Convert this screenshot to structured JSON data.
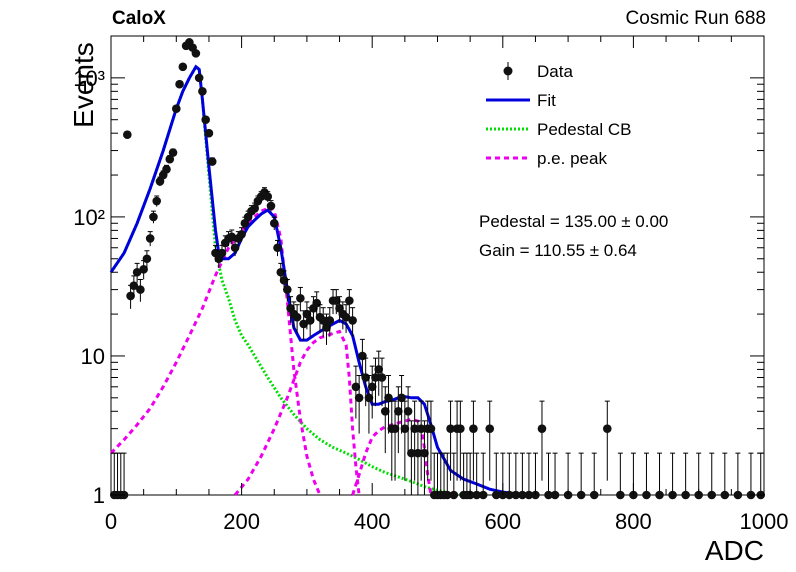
{
  "header": {
    "left": "CaloX",
    "right": "Cosmic Run 688"
  },
  "annotations": {
    "pedestal": "Pedestal = 135.00 ± 0.00",
    "gain": "Gain = 110.55 ± 0.64"
  },
  "chart_data": {
    "type": "scatter",
    "title": "",
    "xlabel": "ADC",
    "ylabel": "Events",
    "xlim": [
      0,
      1000
    ],
    "ylim": [
      1,
      2000
    ],
    "yscale": "log",
    "grid": false,
    "legend_position": "top-right",
    "x_ticks": [
      0,
      200,
      400,
      600,
      800,
      1000
    ],
    "y_ticks": [
      1,
      10,
      100,
      1000
    ],
    "y_tick_labels": [
      "1",
      "10",
      "10²",
      "10³"
    ],
    "legend": [
      {
        "label": "Data",
        "style": "marker",
        "color": "#000000"
      },
      {
        "label": "Fit",
        "style": "solid",
        "color": "#0000dd"
      },
      {
        "label": "Pedestal CB",
        "style": "dotted",
        "color": "#00dd00"
      },
      {
        "label": "p.e. peak",
        "style": "dashed",
        "color": "#ee00ee"
      }
    ],
    "data": {
      "name": "Data",
      "x": [
        5,
        10,
        15,
        20,
        25,
        30,
        35,
        40,
        45,
        50,
        55,
        60,
        65,
        70,
        75,
        80,
        85,
        90,
        95,
        100,
        105,
        110,
        115,
        120,
        125,
        130,
        135,
        140,
        145,
        150,
        155,
        160,
        165,
        170,
        175,
        180,
        185,
        190,
        195,
        200,
        205,
        210,
        215,
        220,
        225,
        230,
        235,
        240,
        245,
        250,
        255,
        260,
        265,
        270,
        275,
        280,
        285,
        290,
        295,
        300,
        305,
        310,
        315,
        320,
        325,
        330,
        335,
        340,
        345,
        350,
        355,
        360,
        365,
        370,
        375,
        380,
        385,
        390,
        395,
        400,
        405,
        410,
        415,
        420,
        425,
        430,
        435,
        440,
        445,
        450,
        455,
        460,
        465,
        470,
        475,
        480,
        485,
        490,
        495,
        500,
        505,
        510,
        515,
        520,
        525,
        530,
        535,
        540,
        545,
        550,
        555,
        560,
        570,
        580,
        590,
        600,
        610,
        620,
        630,
        640,
        650,
        660,
        670,
        680,
        700,
        720,
        740,
        760,
        780,
        800,
        820,
        840,
        860,
        880,
        900,
        920,
        940,
        960,
        980,
        995
      ],
      "y": [
        1,
        1,
        1,
        1,
        390,
        27,
        32,
        40,
        30,
        42,
        50,
        70,
        100,
        130,
        180,
        200,
        220,
        260,
        290,
        600,
        900,
        1200,
        1700,
        1800,
        1650,
        1500,
        1000,
        800,
        500,
        400,
        250,
        55,
        50,
        55,
        65,
        70,
        72,
        60,
        70,
        75,
        90,
        100,
        110,
        115,
        130,
        140,
        150,
        140,
        120,
        90,
        60,
        40,
        35,
        30,
        22,
        20,
        19,
        26,
        17,
        20,
        18,
        22,
        24,
        19,
        18,
        16,
        18,
        25,
        25,
        22,
        20,
        19,
        25,
        18,
        6,
        5,
        10,
        7,
        5,
        6,
        7,
        8,
        7,
        4,
        5,
        3,
        3,
        4,
        5,
        3,
        4,
        2,
        3,
        2,
        3,
        2,
        3,
        3,
        1,
        1,
        1,
        1,
        1,
        3,
        1,
        3,
        3,
        1,
        1,
        1,
        3,
        1,
        1,
        3,
        1,
        1,
        1,
        1,
        1,
        1,
        1,
        3,
        1,
        1,
        1,
        1,
        1,
        3,
        1,
        1,
        1,
        1,
        1,
        1,
        1,
        1,
        1,
        1,
        1,
        1
      ]
    },
    "series": [
      {
        "name": "Fit",
        "x": [
          0,
          20,
          40,
          60,
          80,
          100,
          110,
          120,
          130,
          135,
          140,
          150,
          160,
          165,
          170,
          180,
          190,
          200,
          210,
          220,
          230,
          240,
          250,
          260,
          270,
          280,
          290,
          300,
          310,
          320,
          330,
          340,
          350,
          360,
          370,
          380,
          390,
          400,
          410,
          420,
          430,
          440,
          450,
          460,
          470,
          480,
          490,
          500,
          520,
          540,
          560,
          580,
          600,
          620,
          640
        ],
        "y": [
          40,
          55,
          90,
          160,
          300,
          600,
          800,
          1000,
          1200,
          1150,
          700,
          230,
          80,
          55,
          50,
          50,
          55,
          70,
          85,
          95,
          105,
          112,
          100,
          60,
          30,
          16,
          13,
          13,
          14,
          15,
          16,
          17,
          18,
          17,
          14,
          9,
          6,
          4.5,
          4.5,
          4.7,
          4.8,
          5,
          5.1,
          5,
          5,
          4.5,
          3.2,
          2.2,
          1.5,
          1.3,
          1.2,
          1.1,
          1.05,
          1.02,
          1.0
        ]
      },
      {
        "name": "Pedestal CB",
        "x": [
          0,
          20,
          40,
          60,
          80,
          100,
          110,
          120,
          130,
          135,
          140,
          150,
          160,
          170,
          180,
          190,
          200,
          210,
          220,
          240,
          260,
          280,
          300,
          320,
          340,
          360,
          380,
          400,
          420,
          440,
          460,
          480,
          500,
          520,
          540
        ],
        "y": [
          40,
          55,
          90,
          160,
          300,
          600,
          800,
          1000,
          1200,
          1150,
          700,
          200,
          60,
          35,
          26,
          18,
          14,
          12,
          10,
          7,
          5,
          3.8,
          3,
          2.5,
          2.2,
          2,
          1.8,
          1.6,
          1.45,
          1.35,
          1.25,
          1.15,
          1.08,
          1.03,
          1.0
        ]
      },
      {
        "name": "p.e. peak",
        "components": [
          {
            "x": [
              0,
              20,
              40,
              60,
              80,
              100,
              120,
              140,
              160,
              180,
              200,
              220,
              230,
              240,
              245,
              250,
              260,
              270,
              280,
              290,
              300,
              310,
              320
            ],
            "y": [
              2,
              2.5,
              3.2,
              4.2,
              6,
              9,
              14,
              22,
              38,
              60,
              80,
              100,
              110,
              115,
              118,
              110,
              70,
              25,
              8,
              3.5,
              1.9,
              1.3,
              1.0
            ]
          },
          {
            "x": [
              190,
              210,
              230,
              250,
              270,
              290,
              300,
              310,
              320,
              330,
              340,
              350,
              360,
              365,
              370,
              375,
              380
            ],
            "y": [
              1,
              1.3,
              1.9,
              3,
              5,
              9,
              11,
              12.5,
              13.5,
              14,
              14.5,
              15,
              12,
              7,
              3,
              1.6,
              1.0
            ]
          },
          {
            "x": [
              370,
              380,
              390,
              400,
              410,
              420,
              430,
              440,
              450,
              460,
              470,
              475,
              480,
              485,
              490
            ],
            "y": [
              1,
              1.4,
              2,
              2.6,
              2.9,
              3.1,
              3.2,
              3.3,
              3.4,
              3.5,
              3.4,
              3,
              2.2,
              1.4,
              1.0
            ]
          }
        ]
      }
    ]
  }
}
